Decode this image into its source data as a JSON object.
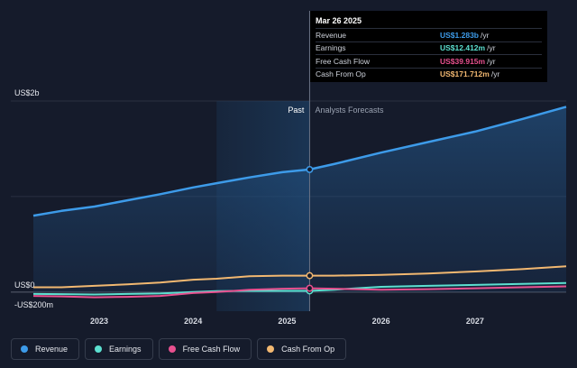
{
  "chart_data": {
    "type": "line",
    "y_unit_label": "US$",
    "ylim": [
      -200,
      2000
    ],
    "xlim": [
      2022.3,
      2027.97
    ],
    "y_tick_labels": [
      {
        "value": 2000,
        "label": "US$2b"
      },
      {
        "value": 0,
        "label": "US$0"
      },
      {
        "value": -200,
        "label": "-US$200m"
      }
    ],
    "x_ticks": [
      2023,
      2024,
      2025,
      2026,
      2027
    ],
    "x_tick_labels": [
      "2023",
      "2024",
      "2025",
      "2026",
      "2027"
    ],
    "past_region": {
      "start": 2024.25,
      "end": 2025.24,
      "label": "Past"
    },
    "forecast_label": "Analysts Forecasts",
    "cursor_x": 2025.24,
    "series": [
      {
        "name": "Revenue",
        "color": "#3d9be9",
        "fill": true,
        "x": [
          2022.3,
          2022.6,
          2022.95,
          2023.3,
          2023.65,
          2024.0,
          2024.25,
          2024.6,
          2024.95,
          2025.24,
          2025.5,
          2026.0,
          2026.5,
          2027.0,
          2027.5,
          2027.97
        ],
        "y": [
          800,
          850,
          895,
          960,
          1025,
          1095,
          1140,
          1200,
          1255,
          1283,
          1340,
          1460,
          1570,
          1680,
          1810,
          1940
        ]
      },
      {
        "name": "Earnings",
        "color": "#5ce0d0",
        "fill": false,
        "x": [
          2022.3,
          2022.6,
          2022.95,
          2023.3,
          2023.65,
          2024.0,
          2024.25,
          2024.6,
          2024.95,
          2025.24,
          2025.5,
          2026.0,
          2026.5,
          2027.0,
          2027.5,
          2027.97
        ],
        "y": [
          -20,
          -22,
          -25,
          -20,
          -15,
          0,
          10,
          12,
          12,
          12.4,
          25,
          55,
          65,
          75,
          85,
          95
        ]
      },
      {
        "name": "Free Cash Flow",
        "color": "#e8508f",
        "fill": false,
        "x": [
          2022.3,
          2022.6,
          2022.95,
          2023.3,
          2023.65,
          2024.0,
          2024.25,
          2024.6,
          2024.95,
          2025.24,
          2025.5,
          2026.0,
          2026.5,
          2027.0,
          2027.5,
          2027.97
        ],
        "y": [
          -40,
          -45,
          -55,
          -50,
          -40,
          -10,
          0,
          25,
          35,
          39.9,
          35,
          25,
          30,
          40,
          50,
          60
        ]
      },
      {
        "name": "Cash From Op",
        "color": "#f2b871",
        "fill": false,
        "x": [
          2022.3,
          2022.6,
          2022.95,
          2023.3,
          2023.65,
          2024.0,
          2024.25,
          2024.6,
          2024.95,
          2025.24,
          2025.5,
          2026.0,
          2026.5,
          2027.0,
          2027.5,
          2027.97
        ],
        "y": [
          50,
          50,
          65,
          80,
          100,
          130,
          140,
          165,
          172,
          171.7,
          172,
          180,
          195,
          215,
          240,
          270
        ]
      }
    ]
  },
  "tooltip": {
    "date": "Mar 26 2025",
    "rows": [
      {
        "name": "Revenue",
        "value": "US$1.283b",
        "unit": "/yr",
        "color": "#3d9be9"
      },
      {
        "name": "Earnings",
        "value": "US$12.412m",
        "unit": "/yr",
        "color": "#5ce0d0"
      },
      {
        "name": "Free Cash Flow",
        "value": "US$39.915m",
        "unit": "/yr",
        "color": "#e8508f"
      },
      {
        "name": "Cash From Op",
        "value": "US$171.712m",
        "unit": "/yr",
        "color": "#f2b871"
      }
    ]
  },
  "legend": [
    {
      "label": "Revenue",
      "color": "#3d9be9"
    },
    {
      "label": "Earnings",
      "color": "#5ce0d0"
    },
    {
      "label": "Free Cash Flow",
      "color": "#e8508f"
    },
    {
      "label": "Cash From Op",
      "color": "#f2b871"
    }
  ]
}
